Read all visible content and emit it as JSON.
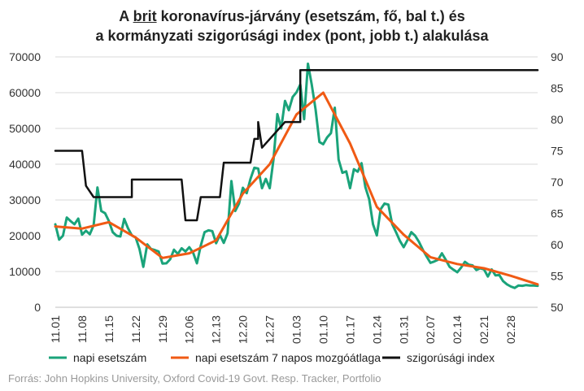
{
  "title": {
    "line1_pre": "A ",
    "line1_underlined": "brit",
    "line1_post": " koronavírus-járvány (esetszám, fő, bal t.) és",
    "line2": "a kormányzati szigorúsági index (pont, jobb t.) alakulása"
  },
  "source": "Forrás: John Hopkins University, Oxford Covid-19 Govt. Resp. Tracker, Portfolio",
  "colors": {
    "daily": "#1aa37a",
    "ma7": "#f05a14",
    "index": "#111111",
    "grid": "#d9d9d9"
  },
  "chart_data": {
    "type": "line",
    "x_tick_labels": [
      "11.01",
      "11.08",
      "11.15",
      "11.22",
      "11.29",
      "12.06",
      "12.13",
      "12.20",
      "12.27",
      "01.03",
      "01.10",
      "01.17",
      "01.24",
      "01.31",
      "02.07",
      "02.14",
      "02.21",
      "02.28"
    ],
    "y_left_ticks": [
      "0",
      "10000",
      "20000",
      "30000",
      "40000",
      "50000",
      "60000",
      "70000"
    ],
    "y_right_ticks": [
      "50",
      "55",
      "60",
      "65",
      "70",
      "75",
      "80",
      "85",
      "90"
    ],
    "ylim_left": [
      0,
      70000
    ],
    "ylim_right": [
      50,
      90
    ],
    "x_day_range": [
      0,
      126
    ],
    "series": [
      {
        "name": "napi esetszám",
        "axis": "left",
        "days": [
          0,
          1,
          2,
          3,
          4,
          5,
          6,
          7,
          8,
          9,
          10,
          11,
          12,
          13,
          14,
          15,
          16,
          17,
          18,
          19,
          20,
          21,
          22,
          23,
          24,
          25,
          26,
          27,
          28,
          29,
          30,
          31,
          32,
          33,
          34,
          35,
          36,
          37,
          38,
          39,
          40,
          41,
          42,
          43,
          44,
          45,
          46,
          47,
          48,
          49,
          50,
          51,
          52,
          53,
          54,
          55,
          56,
          57,
          58,
          59,
          60,
          61,
          62,
          63,
          64,
          65,
          66,
          67,
          68,
          69,
          70,
          71,
          72,
          73,
          74,
          75,
          76,
          77,
          78,
          79,
          80,
          81,
          82,
          83,
          84,
          85,
          86,
          87,
          88,
          89,
          90,
          91,
          92,
          93,
          94,
          95,
          96,
          97,
          98,
          99,
          100,
          101,
          102,
          103,
          104,
          105,
          106,
          107,
          108,
          109,
          110,
          111,
          112,
          113,
          114,
          115,
          116,
          117,
          118,
          119,
          120,
          121,
          122,
          123,
          124,
          125,
          126
        ],
        "values": [
          23200,
          18900,
          20000,
          25100,
          24100,
          23200,
          24800,
          20300,
          21400,
          20400,
          22900,
          33500,
          26900,
          26300,
          24100,
          21000,
          20000,
          19800,
          24700,
          22100,
          20100,
          19500,
          16300,
          11300,
          17600,
          16300,
          16000,
          15600,
          12200,
          12300,
          13400,
          16100,
          14900,
          16500,
          15600,
          16800,
          15300,
          12300,
          17200,
          21000,
          21500,
          21300,
          17900,
          20200,
          18000,
          20700,
          35300,
          26900,
          29000,
          33400,
          31900,
          35900,
          39000,
          38800,
          33300,
          35900,
          33300,
          41400,
          54000,
          50000,
          57700,
          55100,
          58800,
          60100,
          62300,
          52600,
          68100,
          62200,
          55300,
          46200,
          45600,
          47500,
          48700,
          55800,
          41300,
          37600,
          38000,
          33300,
          38600,
          37900,
          40300,
          33600,
          30200,
          23200,
          20100,
          27400,
          29000,
          28700,
          23200,
          21000,
          18600,
          16800,
          18800,
          21000,
          20000,
          18300,
          16100,
          14200,
          12400,
          12800,
          13300,
          15100,
          13300,
          11300,
          10500,
          9800,
          11100,
          12700,
          11900,
          11700,
          10400,
          10900,
          10600,
          8600,
          10600,
          8900,
          9000,
          7300,
          6400,
          5800,
          5400,
          6100,
          6000,
          6200,
          6100,
          6100,
          6000
        ],
        "ma_note": null
      },
      {
        "name": "napi esetszám 7 napos mozgóátlaga",
        "axis": "left",
        "days": [
          0,
          7,
          14,
          21,
          28,
          35,
          42,
          49,
          56,
          63,
          70,
          77,
          84,
          91,
          98,
          105,
          112,
          119,
          126
        ],
        "values": [
          22600,
          22000,
          23800,
          19500,
          13800,
          15100,
          18700,
          31800,
          40000,
          53900,
          60000,
          45800,
          28100,
          20300,
          14000,
          12100,
          10900,
          8800,
          6400
        ]
      },
      {
        "name": "szigorúsági index",
        "axis": "right",
        "days": [
          0,
          7,
          8,
          10,
          11,
          13,
          20,
          20,
          21,
          22,
          33,
          34,
          35,
          37,
          38,
          43,
          44,
          51,
          52,
          53,
          53,
          54,
          60,
          64,
          64,
          65,
          66,
          67,
          126
        ],
        "values": [
          75,
          75,
          69.4,
          67.6,
          67.6,
          67.6,
          67.6,
          70.4,
          70.4,
          70.4,
          70.4,
          63.9,
          63.9,
          63.9,
          67.6,
          67.6,
          73.1,
          73.1,
          76.9,
          76.9,
          79.6,
          75.5,
          79.6,
          79.6,
          87.9,
          87.9,
          87.9,
          87.9,
          87.9
        ]
      }
    ],
    "legend_position": "bottom",
    "grid": "horizontal"
  }
}
